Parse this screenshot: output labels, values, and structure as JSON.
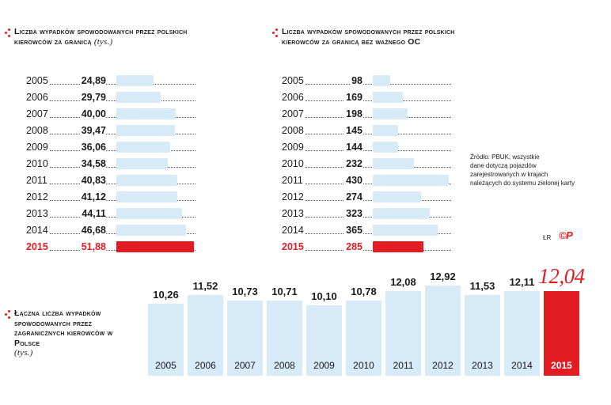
{
  "chart_data": [
    {
      "type": "bar",
      "orientation": "horizontal",
      "title": "Liczba wypadków spowodowanych przez polskich kierowców za granicą",
      "unit": "(tys.)",
      "categories": [
        "2005",
        "2006",
        "2007",
        "2008",
        "2009",
        "2010",
        "2011",
        "2012",
        "2013",
        "2014",
        "2015"
      ],
      "labels": [
        "24,89",
        "29,79",
        "40,00",
        "39,47",
        "36,06",
        "34,58",
        "40,83",
        "41,12",
        "44,11",
        "46,68",
        "51,88"
      ],
      "values": [
        24.89,
        29.79,
        40.0,
        39.47,
        36.06,
        34.58,
        40.83,
        41.12,
        44.11,
        46.68,
        51.88
      ],
      "xlim": [
        0,
        52
      ],
      "highlight": "2015"
    },
    {
      "type": "bar",
      "orientation": "horizontal",
      "title": "Liczba wypadków spowodowanych przez polskich kierowców za granicą bez ważnego OC",
      "categories": [
        "2005",
        "2006",
        "2007",
        "2008",
        "2009",
        "2010",
        "2011",
        "2012",
        "2013",
        "2014",
        "2015"
      ],
      "labels": [
        "98",
        "169",
        "198",
        "145",
        "144",
        "232",
        "430",
        "274",
        "323",
        "365",
        "285"
      ],
      "values": [
        98,
        169,
        198,
        145,
        144,
        232,
        430,
        274,
        323,
        365,
        285
      ],
      "xlim": [
        0,
        425
      ],
      "highlight": "2015"
    },
    {
      "type": "bar",
      "orientation": "vertical",
      "title": "Łączna liczba wypadków spowodowanych przez zagranicznych kierowców w Polsce",
      "unit": "(tys.)",
      "categories": [
        "2005",
        "2006",
        "2007",
        "2008",
        "2009",
        "2010",
        "2011",
        "2012",
        "2013",
        "2014",
        "2015"
      ],
      "labels": [
        "10,26",
        "11,52",
        "10,73",
        "10,71",
        "10,10",
        "10,78",
        "12,08",
        "12,92",
        "11,53",
        "12,11",
        "12,04"
      ],
      "values": [
        10.26,
        11.52,
        10.73,
        10.71,
        10.1,
        10.78,
        12.08,
        12.92,
        11.53,
        12.11,
        12.04
      ],
      "ylim": [
        0,
        13
      ],
      "highlight": "2015"
    }
  ],
  "source": {
    "line1": "Źródło: PBUK, wszystkie",
    "line2": "dane dotyczą pojazdów",
    "line3": "zarejestrowanych w krajach",
    "line4": "należących do systemu zielonej karty"
  },
  "credit": "ŁR",
  "logo": "©P",
  "colors": {
    "bar": "#d6eaf8",
    "accent": "#e11d23"
  }
}
